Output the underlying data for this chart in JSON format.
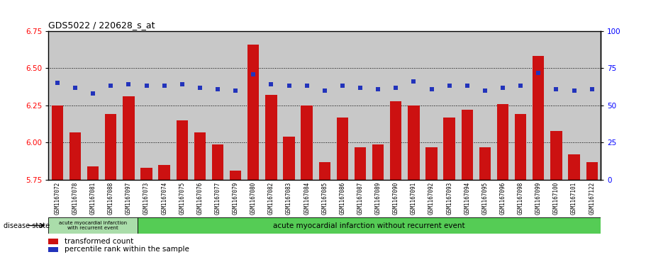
{
  "title": "GDS5022 / 220628_s_at",
  "samples": [
    "GSM1167072",
    "GSM1167078",
    "GSM1167081",
    "GSM1167088",
    "GSM1167097",
    "GSM1167073",
    "GSM1167074",
    "GSM1167075",
    "GSM1167076",
    "GSM1167077",
    "GSM1167079",
    "GSM1167080",
    "GSM1167082",
    "GSM1167083",
    "GSM1167084",
    "GSM1167085",
    "GSM1167086",
    "GSM1167087",
    "GSM1167089",
    "GSM1167090",
    "GSM1167091",
    "GSM1167092",
    "GSM1167093",
    "GSM1167094",
    "GSM1167095",
    "GSM1167096",
    "GSM1167098",
    "GSM1167099",
    "GSM1167100",
    "GSM1167101",
    "GSM1167122"
  ],
  "bar_values": [
    6.25,
    6.07,
    5.84,
    6.19,
    6.31,
    5.83,
    5.85,
    6.15,
    6.07,
    5.99,
    5.81,
    6.66,
    6.32,
    6.04,
    6.25,
    5.87,
    6.17,
    5.97,
    5.99,
    6.28,
    6.25,
    5.97,
    6.17,
    6.22,
    5.97,
    6.26,
    6.19,
    6.58,
    6.08,
    5.92,
    5.87
  ],
  "percentile_values": [
    65,
    62,
    58,
    63,
    64,
    63,
    63,
    64,
    62,
    61,
    60,
    71,
    64,
    63,
    63,
    60,
    63,
    62,
    61,
    62,
    66,
    61,
    63,
    63,
    60,
    62,
    63,
    72,
    61,
    60,
    61
  ],
  "ylim_left": [
    5.75,
    6.75
  ],
  "ylim_right": [
    0,
    100
  ],
  "yticks_left": [
    5.75,
    6.0,
    6.25,
    6.5,
    6.75
  ],
  "yticks_right": [
    0,
    25,
    50,
    75,
    100
  ],
  "bar_color": "#cc1111",
  "dot_color": "#2233bb",
  "background_color": "#c8c8c8",
  "group1_color": "#aaddaa",
  "group2_color": "#55cc55",
  "group1_label": "acute myocardial infarction\nwith recurrent event",
  "group2_label": "acute myocardial infarction without recurrent event",
  "group1_count": 5,
  "disease_state_label": "disease state",
  "legend_bar_label": "transformed count",
  "legend_dot_label": "percentile rank within the sample"
}
